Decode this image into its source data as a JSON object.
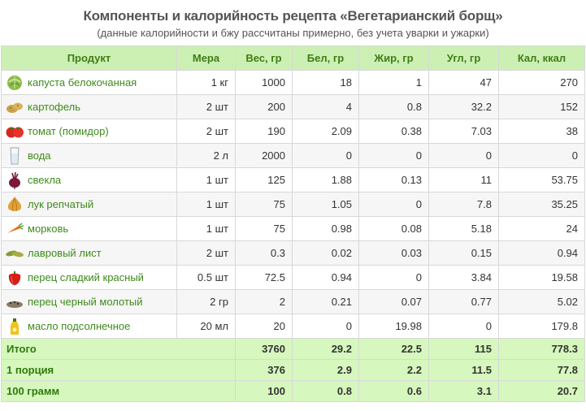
{
  "page": {
    "title": "Компоненты и калорийность рецепта «Вегетарианский борщ»",
    "subtitle": "(данные калорийности и бжу рассчитаны примерно, без учета уварки и ужарки)"
  },
  "table": {
    "headers": [
      "Продукт",
      "Мера",
      "Вес, гр",
      "Бел, гр",
      "Жир, гр",
      "Угл, гр",
      "Кал, ккал"
    ],
    "rows": [
      {
        "icon": "cabbage-icon",
        "name": "капуста белокочанная",
        "measure": "1 кг",
        "weight": "1000",
        "protein": "18",
        "fat": "1",
        "carbs": "47",
        "kcal": "270"
      },
      {
        "icon": "potato-icon",
        "name": "картофель",
        "measure": "2 шт",
        "weight": "200",
        "protein": "4",
        "fat": "0.8",
        "carbs": "32.2",
        "kcal": "152"
      },
      {
        "icon": "tomato-icon",
        "name": "томат (помидор)",
        "measure": "2 шт",
        "weight": "190",
        "protein": "2.09",
        "fat": "0.38",
        "carbs": "7.03",
        "kcal": "38"
      },
      {
        "icon": "water-glass-icon",
        "name": "вода",
        "measure": "2 л",
        "weight": "2000",
        "protein": "0",
        "fat": "0",
        "carbs": "0",
        "kcal": "0"
      },
      {
        "icon": "beet-icon",
        "name": "свекла",
        "measure": "1 шт",
        "weight": "125",
        "protein": "1.88",
        "fat": "0.13",
        "carbs": "11",
        "kcal": "53.75"
      },
      {
        "icon": "onion-icon",
        "name": "лук репчатый",
        "measure": "1 шт",
        "weight": "75",
        "protein": "1.05",
        "fat": "0",
        "carbs": "7.8",
        "kcal": "35.25"
      },
      {
        "icon": "carrot-icon",
        "name": "морковь",
        "measure": "1 шт",
        "weight": "75",
        "protein": "0.98",
        "fat": "0.08",
        "carbs": "5.18",
        "kcal": "24"
      },
      {
        "icon": "bay-leaf-icon",
        "name": "лавровый лист",
        "measure": "2 шт",
        "weight": "0.3",
        "protein": "0.02",
        "fat": "0.03",
        "carbs": "0.15",
        "kcal": "0.94"
      },
      {
        "icon": "red-pepper-icon",
        "name": "перец сладкий красный",
        "measure": "0.5 шт",
        "weight": "72.5",
        "protein": "0.94",
        "fat": "0",
        "carbs": "3.84",
        "kcal": "19.58"
      },
      {
        "icon": "black-pepper-icon",
        "name": "перец черный молотый",
        "measure": "2 гр",
        "weight": "2",
        "protein": "0.21",
        "fat": "0.07",
        "carbs": "0.77",
        "kcal": "5.02"
      },
      {
        "icon": "oil-bottle-icon",
        "name": "масло подсолнечное",
        "measure": "20 мл",
        "weight": "20",
        "protein": "0",
        "fat": "19.98",
        "carbs": "0",
        "kcal": "179.8"
      }
    ],
    "totals": [
      {
        "label": "Итого",
        "weight": "3760",
        "protein": "29.2",
        "fat": "22.5",
        "carbs": "115",
        "kcal": "778.3"
      },
      {
        "label": "1 порция",
        "weight": "376",
        "protein": "2.9",
        "fat": "2.2",
        "carbs": "11.5",
        "kcal": "77.8"
      },
      {
        "label": "100 грамм",
        "weight": "100",
        "protein": "0.8",
        "fat": "0.6",
        "carbs": "3.1",
        "kcal": "20.7"
      }
    ]
  },
  "colors": {
    "header_bg": "#ccf0b4",
    "header_text": "#3f7d15",
    "product_link": "#3f8a1b",
    "totals_bg": "#d6f7bd",
    "totals_text": "#2e7a0b"
  }
}
